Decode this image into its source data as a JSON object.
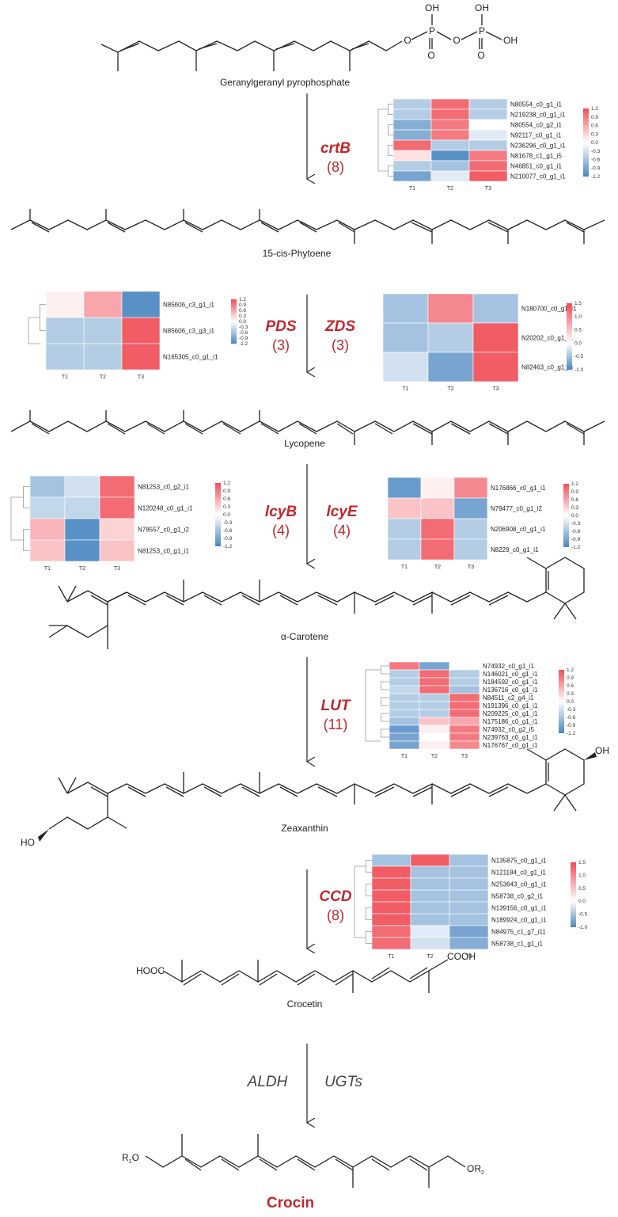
{
  "compounds": {
    "ggpp": "Geranylgeranyl pyrophosphate",
    "phytoene": "15-cis-Phytoene",
    "lycopene": "Lycopene",
    "acarotene": "α-Carotene",
    "zeaxanthin": "Zeaxanthin",
    "crocetin": "Crocetin",
    "crocin": "Crocin"
  },
  "chem_labels": {
    "oh": "OH",
    "o": "O",
    "p": "P",
    "ho": "HO",
    "hooc": "HOOC",
    "cooh": "COOH",
    "r1o": "R",
    "r1_sub": "1",
    "r1_o": "O",
    "or2": "OR",
    "r2_sub": "2"
  },
  "enzymes": {
    "crtB": {
      "name": "crtB",
      "count": "(8)"
    },
    "PDS": {
      "name": "PDS",
      "count": "(3)"
    },
    "ZDS": {
      "name": "ZDS",
      "count": "(3)"
    },
    "lcyB": {
      "name": "lcyB",
      "count": "(4)"
    },
    "lcyE": {
      "name": "lcyE",
      "count": "(4)"
    },
    "LUT": {
      "name": "LUT",
      "count": "(11)"
    },
    "CCD": {
      "name": "CCD",
      "count": "(8)"
    },
    "ALDH": {
      "name": "ALDH"
    },
    "UGTs": {
      "name": "UGTs"
    }
  },
  "colors": {
    "high": "#f04d57",
    "mid": "#ffffff",
    "low": "#4a86c0",
    "accent": "#c0272d"
  },
  "heatmaps": [
    {
      "id": "crtB",
      "columns": [
        "T1",
        "T2",
        "T3"
      ],
      "genes": [
        "N80554_c0_g1_i1",
        "N219238_c0_g1_i1",
        "N80554_c0_g2_i1",
        "N92117_c0_g1_i1",
        "N236296_c0_g1_i1",
        "N81678_c1_g1_i5",
        "N46851_c0_g1_i1",
        "N210077_c0_g1_i1"
      ],
      "values": [
        [
          -0.5,
          1.0,
          -0.5
        ],
        [
          -0.5,
          1.0,
          -0.5
        ],
        [
          -0.8,
          0.9,
          0.0
        ],
        [
          -0.8,
          0.9,
          -0.2
        ],
        [
          1.0,
          -0.5,
          -0.5
        ],
        [
          0.2,
          -1.1,
          0.9
        ],
        [
          -0.5,
          -0.6,
          1.0
        ],
        [
          -0.9,
          -0.2,
          1.1
        ]
      ],
      "scale_ticks": [
        "1.2",
        "0.9",
        "0.6",
        "0.3",
        "0.0",
        "-0.3",
        "-0.6",
        "-0.9",
        "-1.2"
      ]
    },
    {
      "id": "PDS",
      "columns": [
        "T1",
        "T2",
        "T3"
      ],
      "genes": [
        "N85606_c3_g1_i1",
        "N85606_c3_g3_i1",
        "N165305_c0_g1_i1"
      ],
      "values": [
        [
          0.1,
          0.6,
          -1.1
        ],
        [
          -0.5,
          -0.5,
          1.1
        ],
        [
          -0.5,
          -0.5,
          1.1
        ]
      ],
      "scale_ticks": [
        "1.2",
        "0.9",
        "0.6",
        "0.3",
        "0.0",
        "-0.3",
        "-0.6",
        "-0.9",
        "-1.2"
      ]
    },
    {
      "id": "ZDS",
      "columns": [
        "T1",
        "T2",
        "T3"
      ],
      "genes": [
        "N180700_c0_g1_i1",
        "N20202_c0_g1_i1",
        "N82463_c0_g1_i6"
      ],
      "values": [
        [
          -0.6,
          0.8,
          -0.6
        ],
        [
          -0.6,
          -0.5,
          1.1
        ],
        [
          -0.3,
          -0.9,
          1.1
        ]
      ],
      "scale_ticks": [
        "1.5",
        "1.0",
        "0.5",
        "0.0",
        "-0.5",
        "-1.0"
      ]
    },
    {
      "id": "lcyB",
      "columns": [
        "T1",
        "T2",
        "T3"
      ],
      "genes": [
        "N81253_c0_g2_i1",
        "N120248_c0_g1_i1",
        "N78557_c0_g1_i2",
        "N81253_c0_g1_i1"
      ],
      "values": [
        [
          -0.6,
          -0.3,
          1.0
        ],
        [
          -0.4,
          -0.4,
          1.0
        ],
        [
          0.5,
          -1.1,
          0.3
        ],
        [
          0.4,
          -1.1,
          0.4
        ]
      ],
      "scale_ticks": [
        "1.2",
        "0.9",
        "0.6",
        "0.3",
        "0.0",
        "-0.3",
        "-0.6",
        "-0.9",
        "-1.2"
      ]
    },
    {
      "id": "lcyE",
      "columns": [
        "T1",
        "T2",
        "T3"
      ],
      "genes": [
        "N176866_c0_g1_i1",
        "N79477_c0_g1_i2",
        "N206908_c0_g1_i1",
        "N8229_c0_g1_i1"
      ],
      "values": [
        [
          -1.0,
          0.1,
          0.8
        ],
        [
          0.4,
          0.4,
          -0.9
        ],
        [
          -0.5,
          1.0,
          -0.5
        ],
        [
          -0.5,
          1.0,
          -0.5
        ]
      ],
      "scale_ticks": [
        "1.2",
        "0.9",
        "0.6",
        "0.3",
        "0.0",
        "-0.3",
        "-0.6",
        "-0.9",
        "-1.2"
      ]
    },
    {
      "id": "LUT",
      "columns": [
        "T1",
        "T2",
        "T3"
      ],
      "genes": [
        "N74932_c0_g1_i1",
        "N146021_c0_g1_i1",
        "N184592_c0_g1_i1",
        "N136716_c0_g1_i1",
        "N84511_c2_g4_i1",
        "N191396_c0_g1_i1",
        "N209225_c0_g1_i1",
        "N175186_c0_g1_i1",
        "N74932_c0_g2_i5",
        "N239763_c0_g1_i1",
        "N176767_c0_g1_i1"
      ],
      "values": [
        [
          0.9,
          -0.9,
          0.0
        ],
        [
          -0.5,
          1.0,
          -0.5
        ],
        [
          -0.5,
          1.0,
          -0.5
        ],
        [
          -0.4,
          1.0,
          -0.6
        ],
        [
          -0.5,
          -0.5,
          1.0
        ],
        [
          -0.5,
          -0.5,
          1.0
        ],
        [
          -0.5,
          -0.5,
          1.0
        ],
        [
          -0.6,
          0.4,
          0.6
        ],
        [
          -1.0,
          0.1,
          0.9
        ],
        [
          -0.9,
          0.0,
          0.9
        ],
        [
          -0.9,
          0.1,
          0.8
        ]
      ],
      "scale_ticks": [
        "1.2",
        "0.9",
        "0.6",
        "0.3",
        "0.0",
        "-0.3",
        "-0.6",
        "-0.9",
        "-1.2"
      ]
    },
    {
      "id": "CCD",
      "columns": [
        "T1",
        "T2",
        "T3"
      ],
      "genes": [
        "N135875_c0_g1_i1",
        "N121184_c0_g1_i1",
        "N253643_c0_g1_i1",
        "N58738_c0_g2_i1",
        "N139156_c0_g1_i1",
        "N189924_c0_g1_i1",
        "N84975_c1_g7_i11",
        "N58738_c1_g1_i1"
      ],
      "values": [
        [
          -0.6,
          1.1,
          -0.6
        ],
        [
          1.1,
          -0.6,
          -0.6
        ],
        [
          1.1,
          -0.6,
          -0.6
        ],
        [
          1.1,
          -0.6,
          -0.6
        ],
        [
          1.1,
          -0.6,
          -0.6
        ],
        [
          1.1,
          -0.6,
          -0.6
        ],
        [
          1.0,
          -0.2,
          -0.9
        ],
        [
          1.0,
          -0.3,
          -0.8
        ]
      ],
      "scale_ticks": [
        "1.5",
        "1.0",
        "0.5",
        "0.0",
        "-0.5",
        "-1.0"
      ]
    }
  ]
}
